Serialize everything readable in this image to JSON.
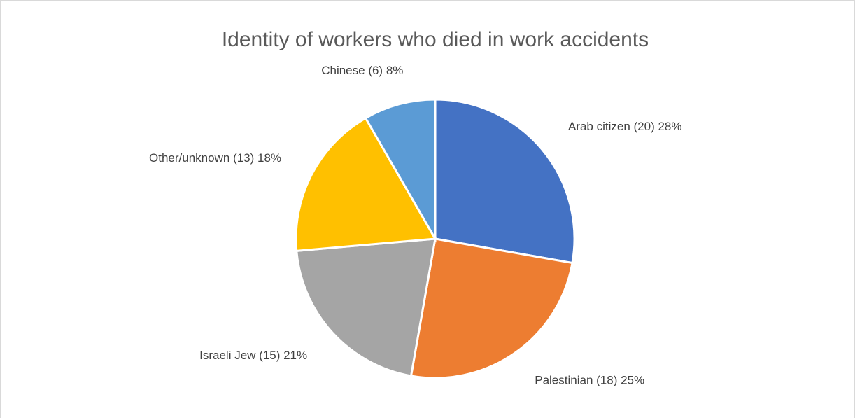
{
  "chart_data": {
    "type": "pie",
    "title": "Identity of workers who died in work accidents",
    "categories": [
      "Arab citizen (20) 28%",
      "Palestinian (18) 25%",
      "Israeli Jew (15) 21%",
      "Other/unknown (13) 18%",
      "Chinese (6) 8%"
    ],
    "values": [
      20,
      18,
      15,
      13,
      6
    ],
    "colors": [
      "#4472c4",
      "#ed7d31",
      "#a5a5a5",
      "#ffc000",
      "#5b9bd5"
    ]
  }
}
